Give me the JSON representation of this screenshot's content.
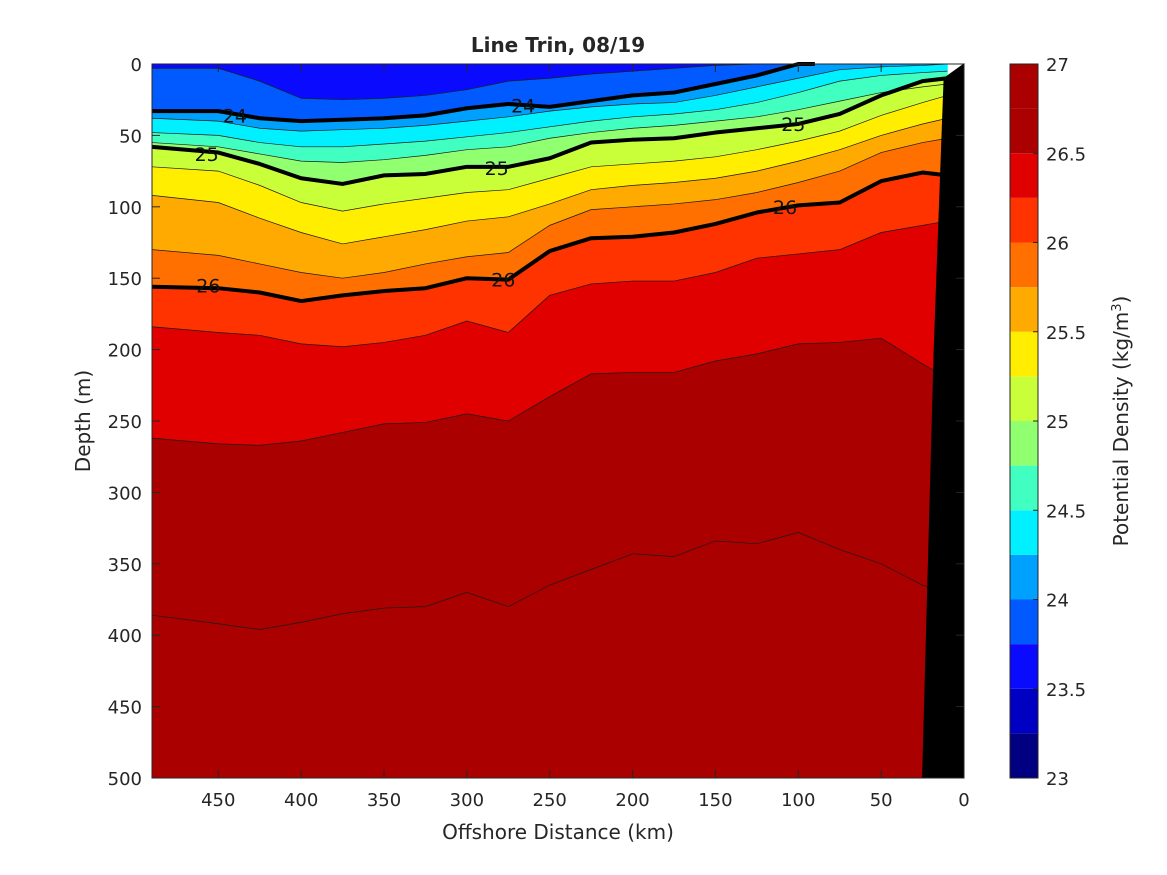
{
  "chart_data": {
    "type": "heatmap",
    "title": "Line Trin, 08/19",
    "xlabel": "Offshore Distance (km)",
    "ylabel": "Depth (m)",
    "colorbar_label": "Potential Density (kg/m",
    "colorbar_label_sup": "3",
    "colorbar_label_close": ")",
    "xlim": [
      490,
      0
    ],
    "ylim": [
      0,
      500
    ],
    "x_reversed": true,
    "y_reversed": true,
    "xticks": [
      450,
      400,
      350,
      300,
      250,
      200,
      150,
      100,
      50,
      0
    ],
    "yticks": [
      0,
      50,
      100,
      150,
      200,
      250,
      300,
      350,
      400,
      450,
      500
    ],
    "clim": [
      23,
      27
    ],
    "colorbar_ticks": [
      23,
      23.5,
      24,
      24.5,
      25,
      25.5,
      26,
      26.5,
      27
    ],
    "level_step": 0.25,
    "level_colors": [
      "#000080",
      "#0000c3",
      "#0a0aff",
      "#005aff",
      "#00a0ff",
      "#00f0ff",
      "#40ffc0",
      "#90ff70",
      "#c8ff38",
      "#ffee00",
      "#ffaa00",
      "#ff7000",
      "#ff3300",
      "#e00000",
      "#aa0000"
    ],
    "isopycnals": [
      {
        "level": 23.25,
        "x": [
          490,
          450,
          425,
          400,
          375,
          350,
          325,
          300,
          275,
          250,
          225,
          200,
          175,
          150,
          125,
          100,
          75,
          50,
          25,
          10
        ],
        "depth": [
          0,
          0,
          0,
          0,
          0,
          0,
          0,
          0,
          0,
          0,
          0,
          0,
          0,
          0,
          0,
          0,
          0,
          0,
          0,
          0
        ]
      },
      {
        "level": 23.5,
        "x": [
          490,
          450,
          425,
          400,
          375,
          350,
          325,
          300,
          275,
          250,
          225,
          200,
          175,
          150,
          125,
          100,
          75,
          50,
          25,
          10
        ],
        "depth": [
          0,
          0,
          0,
          0,
          0,
          0,
          0,
          0,
          0,
          0,
          0,
          0,
          0,
          0,
          0,
          0,
          0,
          0,
          0,
          0
        ]
      },
      {
        "level": 23.75,
        "x": [
          490,
          450,
          425,
          400,
          375,
          350,
          325,
          300,
          275,
          250,
          225,
          200,
          175,
          150,
          125,
          100,
          75,
          50,
          25,
          10
        ],
        "depth": [
          3,
          3,
          12,
          24,
          25,
          24,
          22,
          18,
          12,
          10,
          7,
          5,
          3,
          1,
          0,
          0,
          0,
          0,
          0,
          0
        ]
      },
      {
        "level": 24.0,
        "x": [
          490,
          450,
          425,
          400,
          375,
          350,
          325,
          300,
          275,
          250,
          225,
          200,
          175,
          150,
          125,
          100,
          75,
          50,
          25,
          10
        ],
        "depth": [
          33,
          33,
          38,
          40,
          39,
          38,
          36,
          31,
          28,
          30,
          26,
          22,
          20,
          14,
          8,
          0,
          0,
          0,
          0,
          0
        ]
      },
      {
        "level": 24.25,
        "x": [
          490,
          450,
          425,
          400,
          375,
          350,
          325,
          300,
          275,
          250,
          225,
          200,
          175,
          150,
          125,
          100,
          75,
          50,
          25,
          10
        ],
        "depth": [
          38,
          40,
          45,
          47,
          46,
          45,
          43,
          40,
          37,
          33,
          30,
          28,
          27,
          22,
          16,
          10,
          4,
          2,
          1,
          0
        ]
      },
      {
        "level": 24.5,
        "x": [
          490,
          450,
          425,
          400,
          375,
          350,
          325,
          300,
          275,
          250,
          225,
          200,
          175,
          150,
          125,
          100,
          75,
          50,
          25,
          10
        ],
        "depth": [
          48,
          50,
          55,
          58,
          58,
          56,
          54,
          51,
          48,
          44,
          40,
          37,
          35,
          32,
          27,
          20,
          12,
          8,
          6,
          5
        ]
      },
      {
        "level": 24.75,
        "x": [
          490,
          450,
          425,
          400,
          375,
          350,
          325,
          300,
          275,
          250,
          225,
          200,
          175,
          150,
          125,
          100,
          75,
          50,
          25,
          10
        ],
        "depth": [
          55,
          58,
          63,
          68,
          69,
          67,
          64,
          60,
          58,
          52,
          48,
          45,
          43,
          40,
          37,
          32,
          26,
          20,
          16,
          14
        ]
      },
      {
        "level": 25.0,
        "x": [
          490,
          450,
          425,
          400,
          375,
          350,
          325,
          300,
          275,
          250,
          225,
          200,
          175,
          150,
          125,
          100,
          75,
          50,
          25,
          10
        ],
        "depth": [
          58,
          62,
          70,
          80,
          84,
          78,
          77,
          72,
          72,
          66,
          55,
          53,
          52,
          48,
          45,
          42,
          35,
          22,
          12,
          10
        ]
      },
      {
        "level": 25.25,
        "x": [
          490,
          450,
          425,
          400,
          375,
          350,
          325,
          300,
          275,
          250,
          225,
          200,
          175,
          150,
          125,
          100,
          75,
          50,
          25,
          10
        ],
        "depth": [
          72,
          75,
          85,
          97,
          103,
          98,
          94,
          90,
          88,
          80,
          72,
          70,
          68,
          65,
          60,
          54,
          47,
          36,
          27,
          22
        ]
      },
      {
        "level": 25.5,
        "x": [
          490,
          450,
          425,
          400,
          375,
          350,
          325,
          300,
          275,
          250,
          225,
          200,
          175,
          150,
          125,
          100,
          75,
          50,
          25,
          10
        ],
        "depth": [
          92,
          97,
          108,
          118,
          126,
          121,
          116,
          110,
          107,
          98,
          88,
          85,
          83,
          80,
          75,
          68,
          60,
          50,
          42,
          38
        ]
      },
      {
        "level": 25.75,
        "x": [
          490,
          450,
          425,
          400,
          375,
          350,
          325,
          300,
          275,
          250,
          225,
          200,
          175,
          150,
          125,
          100,
          75,
          50,
          25,
          10
        ],
        "depth": [
          130,
          134,
          140,
          146,
          150,
          146,
          140,
          135,
          132,
          113,
          102,
          100,
          98,
          95,
          90,
          83,
          75,
          62,
          55,
          52
        ]
      },
      {
        "level": 26.0,
        "x": [
          490,
          450,
          425,
          400,
          375,
          350,
          325,
          300,
          275,
          250,
          225,
          200,
          175,
          150,
          125,
          100,
          75,
          50,
          25,
          10
        ],
        "depth": [
          156,
          157,
          160,
          166,
          162,
          159,
          157,
          150,
          151,
          131,
          122,
          121,
          118,
          112,
          104,
          99,
          97,
          82,
          76,
          78
        ]
      },
      {
        "level": 26.25,
        "x": [
          490,
          450,
          425,
          400,
          375,
          350,
          325,
          300,
          275,
          250,
          225,
          200,
          175,
          150,
          125,
          100,
          75,
          50,
          25,
          10
        ],
        "depth": [
          184,
          188,
          190,
          196,
          198,
          195,
          190,
          180,
          188,
          162,
          154,
          152,
          152,
          146,
          136,
          133,
          130,
          118,
          113,
          110
        ]
      },
      {
        "level": 26.5,
        "x": [
          490,
          450,
          425,
          400,
          375,
          350,
          325,
          300,
          275,
          250,
          225,
          200,
          175,
          150,
          125,
          100,
          75,
          50,
          25,
          10
        ],
        "depth": [
          262,
          266,
          267,
          264,
          258,
          252,
          251,
          245,
          250,
          233,
          217,
          216,
          216,
          208,
          203,
          196,
          195,
          192,
          210,
          220
        ]
      },
      {
        "level": 26.75,
        "x": [
          490,
          450,
          425,
          400,
          375,
          350,
          325,
          300,
          275,
          250,
          225,
          200,
          175,
          150,
          125,
          100,
          75,
          50,
          25,
          10
        ],
        "depth": [
          386,
          392,
          396,
          391,
          385,
          381,
          380,
          370,
          380,
          365,
          354,
          343,
          345,
          334,
          336,
          328,
          340,
          350,
          365,
          370
        ]
      }
    ],
    "bold_contours": [
      {
        "label": "24",
        "x": [
          490,
          450,
          425,
          400,
          375,
          350,
          325,
          300,
          275,
          250,
          225,
          200,
          175,
          150,
          125,
          100,
          90
        ],
        "depth": [
          33,
          33,
          38,
          40,
          39,
          38,
          36,
          31,
          28,
          30,
          26,
          22,
          20,
          14,
          8,
          0,
          -2
        ]
      },
      {
        "label": "25",
        "x": [
          490,
          450,
          425,
          400,
          375,
          350,
          325,
          300,
          275,
          250,
          225,
          200,
          175,
          150,
          125,
          100,
          75,
          50,
          25,
          10,
          0
        ],
        "depth": [
          58,
          62,
          70,
          80,
          84,
          78,
          77,
          72,
          72,
          66,
          55,
          53,
          52,
          48,
          45,
          42,
          35,
          22,
          12,
          10,
          12
        ]
      },
      {
        "label": "26",
        "x": [
          490,
          450,
          425,
          400,
          375,
          350,
          325,
          300,
          275,
          250,
          225,
          200,
          175,
          150,
          125,
          100,
          75,
          50,
          25,
          10,
          0
        ],
        "depth": [
          156,
          157,
          160,
          166,
          162,
          159,
          157,
          150,
          151,
          131,
          122,
          121,
          118,
          112,
          104,
          99,
          97,
          82,
          76,
          78,
          78
        ]
      }
    ],
    "contour_labels": [
      {
        "text": "24",
        "x": 440,
        "depth": 36
      },
      {
        "text": "24",
        "x": 266,
        "depth": 29
      },
      {
        "text": "25",
        "x": 457,
        "depth": 63
      },
      {
        "text": "25",
        "x": 282,
        "depth": 73
      },
      {
        "text": "25",
        "x": 103,
        "depth": 42
      },
      {
        "text": "26",
        "x": 456,
        "depth": 155
      },
      {
        "text": "26",
        "x": 278,
        "depth": 151
      },
      {
        "text": "26",
        "x": 108,
        "depth": 100
      }
    ],
    "bathymetry": {
      "x": [
        0,
        0,
        12,
        18,
        25,
        25
      ],
      "depth": [
        500,
        0,
        10,
        200,
        500,
        500
      ]
    }
  }
}
